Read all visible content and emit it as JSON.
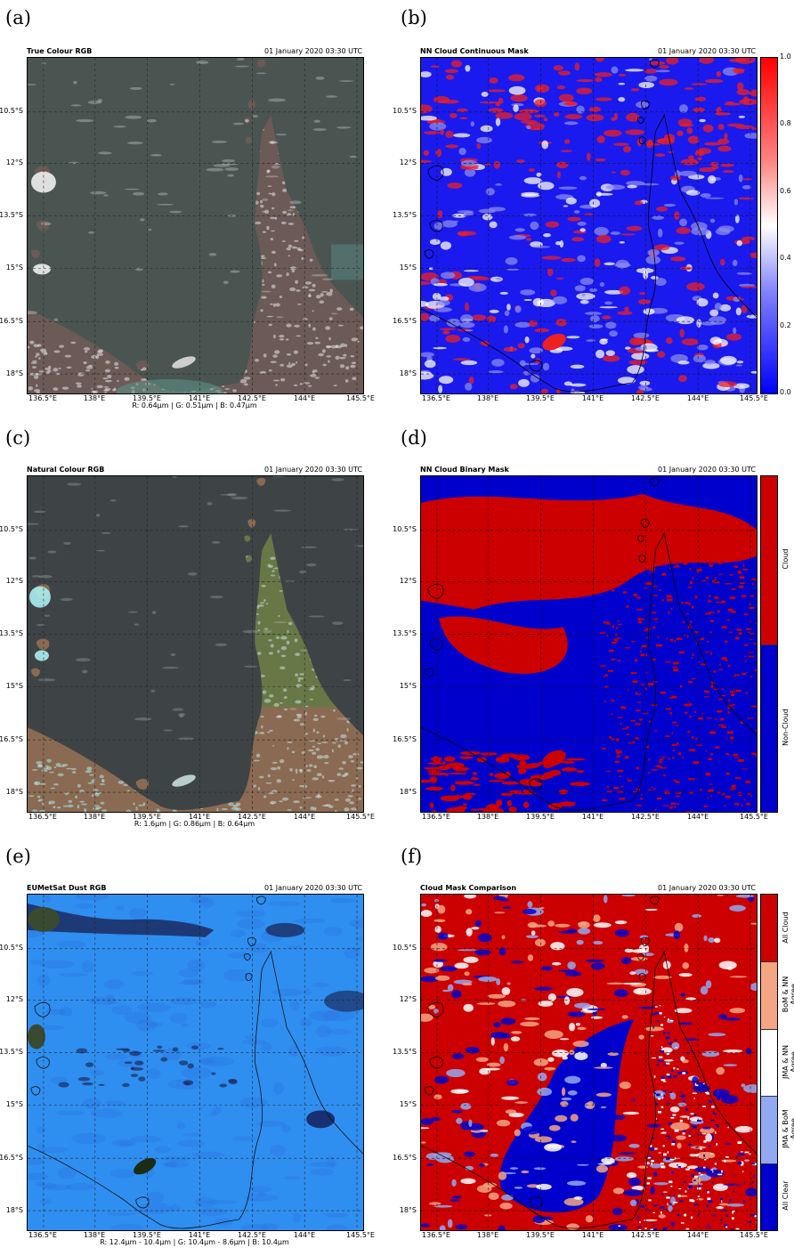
{
  "panels": [
    {
      "label": "(a)",
      "title": "True Colour RGB",
      "date": "01 January 2020 03:30 UTC",
      "caption": "R: 0.64μm | G: 0.51μm | B: 0.47μm",
      "style": "truecolour"
    },
    {
      "label": "(b)",
      "title": "NN Cloud Continuous Mask",
      "date": "01 January 2020 03:30 UTC",
      "caption": "",
      "style": "continuous",
      "colorbar": {
        "type": "continuous",
        "ticks": [
          "1.0",
          "0.8",
          "0.6",
          "0.4",
          "0.2",
          "0.0"
        ]
      }
    },
    {
      "label": "(c)",
      "title": "Natural Colour RGB",
      "date": "01 January 2020 03:30 UTC",
      "caption": "R: 1.6μm | G: 0.86μm | B: 0.64μm",
      "style": "naturalcolour"
    },
    {
      "label": "(d)",
      "title": "NN Cloud Binary Mask",
      "date": "01 January 2020 03:30 UTC",
      "caption": "",
      "style": "binary",
      "colorbar": {
        "type": "categorical",
        "categories": [
          {
            "label": "Cloud",
            "color": "#cc0000"
          },
          {
            "label": "Non-Cloud",
            "color": "#0000cc"
          }
        ]
      }
    },
    {
      "label": "(e)",
      "title": "EUMetSat Dust RGB",
      "date": "01 January 2020 03:30 UTC",
      "caption": "R: 12.4μm - 10.4μm | G: 10.4μm - 8.6μm | B: 10.4μm",
      "style": "dust"
    },
    {
      "label": "(f)",
      "title": "Cloud Mask Comparison",
      "date": "01 January 2020 03:30 UTC",
      "caption": "",
      "style": "comparison",
      "colorbar": {
        "type": "categorical",
        "categories": [
          {
            "label": "All Cloud",
            "color": "#cc0000"
          },
          {
            "label": "BoM & NN Agree",
            "color": "#f4a582"
          },
          {
            "label": "JMA & NN Agree",
            "color": "#ffffff"
          },
          {
            "label": "JMA & BoM Agree",
            "color": "#92a8f0"
          },
          {
            "label": "All Clear",
            "color": "#0000cc"
          }
        ]
      }
    }
  ],
  "axes": {
    "yticks": [
      "10.5°S",
      "12°S",
      "13.5°S",
      "15°S",
      "16.5°S",
      "18°S"
    ],
    "xticks": [
      "136.5°E",
      "138°E",
      "139.5°E",
      "141°E",
      "142.5°E",
      "144°E",
      "145.5°E"
    ]
  },
  "colors": {
    "cloud_red": "#cc0000",
    "clear_blue": "#0000cc"
  }
}
